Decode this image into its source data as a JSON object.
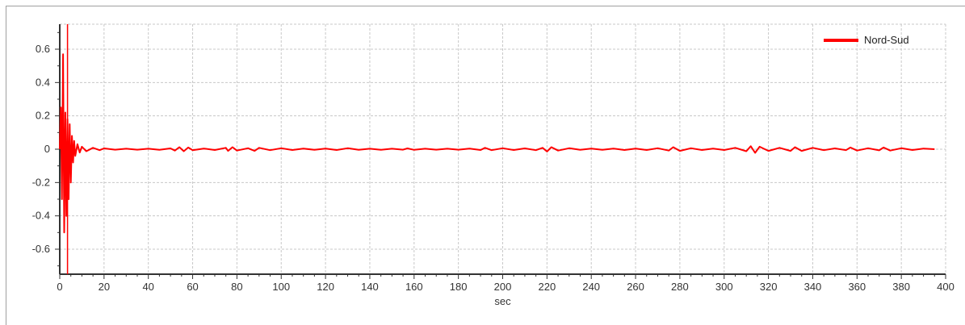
{
  "chart_data": {
    "type": "line",
    "title": "",
    "xlabel": "sec",
    "ylabel": "",
    "xlim": [
      0,
      400
    ],
    "ylim": [
      -0.75,
      0.75
    ],
    "x_ticks": [
      0,
      20,
      40,
      60,
      80,
      100,
      120,
      140,
      160,
      180,
      200,
      220,
      240,
      260,
      280,
      300,
      320,
      340,
      360,
      380,
      400
    ],
    "y_ticks": [
      0.6,
      0.4,
      0.2,
      0,
      -0.2,
      -0.4,
      -0.6
    ],
    "grid": true,
    "legend_position": "top-right",
    "cursor_x": 3.5,
    "series": [
      {
        "name": "Nord-Sud",
        "color": "#ff0000",
        "x": [
          0,
          0.5,
          1,
          1.5,
          2,
          2.5,
          3,
          3.5,
          4,
          4.5,
          5,
          5.5,
          6,
          6.5,
          7,
          8,
          9,
          10,
          12,
          15,
          18,
          20,
          25,
          30,
          35,
          40,
          45,
          50,
          52,
          54,
          56,
          58,
          60,
          65,
          70,
          75,
          76,
          78,
          80,
          85,
          88,
          90,
          95,
          100,
          105,
          110,
          115,
          120,
          125,
          130,
          135,
          140,
          145,
          150,
          155,
          157,
          160,
          165,
          170,
          175,
          180,
          185,
          190,
          192,
          195,
          200,
          205,
          210,
          215,
          218,
          220,
          222,
          225,
          230,
          235,
          240,
          245,
          250,
          255,
          260,
          265,
          270,
          275,
          277,
          280,
          285,
          290,
          295,
          300,
          305,
          310,
          312,
          314,
          316,
          320,
          325,
          330,
          332,
          335,
          340,
          345,
          350,
          355,
          357,
          360,
          365,
          370,
          372,
          375,
          380,
          385,
          390,
          395
        ],
        "y": [
          0,
          0.25,
          -0.3,
          0.57,
          -0.5,
          0.22,
          -0.4,
          0.18,
          -0.3,
          0.15,
          -0.2,
          0.08,
          -0.08,
          0.05,
          -0.04,
          0.03,
          -0.02,
          0.015,
          -0.012,
          0.008,
          -0.006,
          0.005,
          -0.003,
          0.003,
          -0.003,
          0.003,
          -0.004,
          0.005,
          -0.008,
          0.012,
          -0.012,
          0.01,
          -0.006,
          0.004,
          -0.005,
          0.008,
          -0.01,
          0.012,
          -0.008,
          0.006,
          -0.01,
          0.008,
          -0.006,
          0.006,
          -0.005,
          0.004,
          -0.004,
          0.004,
          -0.005,
          0.006,
          -0.004,
          0.003,
          -0.004,
          0.003,
          -0.003,
          0.005,
          -0.004,
          0.003,
          -0.003,
          0.003,
          -0.003,
          0.004,
          -0.005,
          0.008,
          -0.006,
          0.006,
          -0.005,
          0.005,
          -0.006,
          0.008,
          -0.014,
          0.012,
          -0.008,
          0.006,
          -0.004,
          0.004,
          -0.004,
          0.004,
          -0.005,
          0.004,
          -0.005,
          0.006,
          -0.008,
          0.012,
          -0.01,
          0.006,
          -0.005,
          0.004,
          -0.005,
          0.008,
          -0.012,
          0.018,
          -0.022,
          0.015,
          -0.01,
          0.008,
          -0.01,
          0.012,
          -0.01,
          0.008,
          -0.006,
          0.005,
          -0.006,
          0.01,
          -0.008,
          0.006,
          -0.007,
          0.01,
          -0.008,
          0.006,
          -0.005,
          0.004,
          0
        ]
      }
    ]
  }
}
